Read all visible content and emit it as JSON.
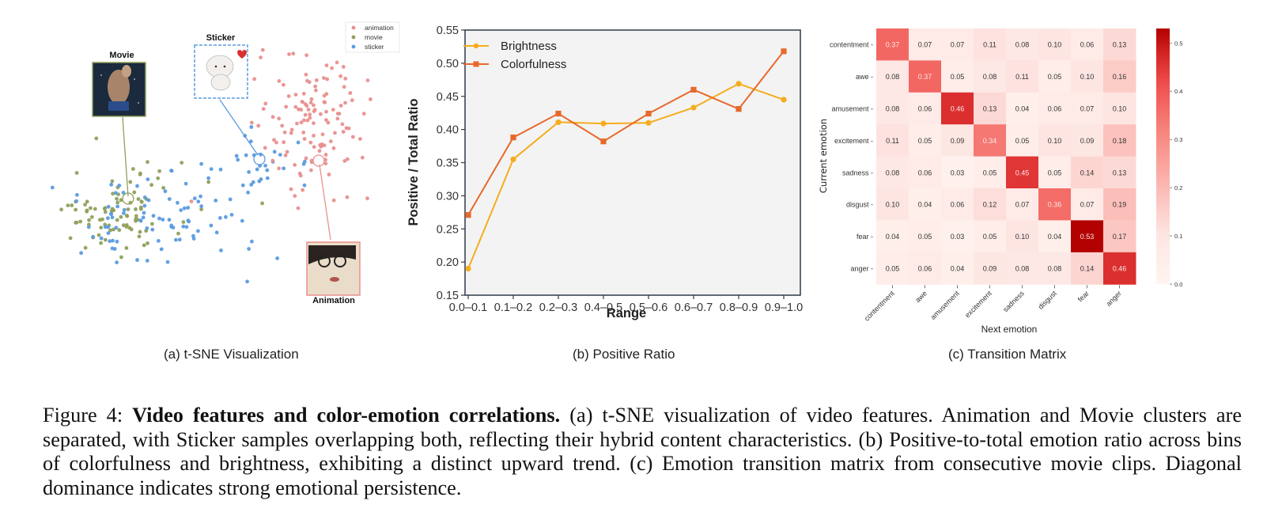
{
  "figure": {
    "subcaptions": {
      "a": "(a) t-SNE Visualization",
      "b": "(b) Positive Ratio",
      "c": "(c) Transition Matrix"
    },
    "caption": {
      "label": "Figure 4: ",
      "bold": "Video features and color-emotion correlations.",
      "text": " (a) t-SNE visualization of video features. Animation and Movie clusters are separated, with Sticker samples overlapping both, reflecting their hybrid content characteristics. (b) Positive-to-total emotion ratio across bins of colorfulness and brightness, exhibiting a distinct upward trend. (c) Emotion transition matrix from consecutive movie clips. Diagonal dominance indicates strong emotional persistence."
    }
  },
  "chart_data": [
    {
      "type": "scatter",
      "title": "t-SNE Visualization",
      "legend": [
        {
          "name": "animation",
          "color": "#e8908e"
        },
        {
          "name": "movie",
          "color": "#8fa05c"
        },
        {
          "name": "sticker",
          "color": "#5b9be0"
        }
      ],
      "legend_position": "top-right",
      "annotations": [
        {
          "label": "Movie",
          "series": "movie",
          "image": "movie-thumbnail",
          "border_color": "#8fa05c"
        },
        {
          "label": "Sticker",
          "series": "sticker",
          "image": "sticker-thumbnail",
          "border_color": "#5b9be0"
        },
        {
          "label": "Animation",
          "series": "animation",
          "image": "animation-thumbnail",
          "border_color": "#e8908e"
        }
      ],
      "clusters": [
        {
          "series": "movie",
          "center": [
            -0.62,
            -0.35
          ],
          "spread": [
            0.26,
            0.2
          ],
          "count": 95
        },
        {
          "series": "sticker",
          "center": [
            -0.38,
            -0.4
          ],
          "spread": [
            0.36,
            0.24
          ],
          "count": 90
        },
        {
          "series": "sticker",
          "center": [
            0.25,
            0.05
          ],
          "spread": [
            0.16,
            0.12
          ],
          "count": 30
        },
        {
          "series": "animation",
          "center": [
            0.55,
            0.35
          ],
          "spread": [
            0.2,
            0.3
          ],
          "count": 130
        }
      ]
    },
    {
      "type": "line",
      "title": "",
      "xlabel": "Range",
      "ylabel": "Positive / Total Ratio",
      "categories": [
        "0.0–0.1",
        "0.1–0.2",
        "0.2–0.3",
        "0.4–0.5",
        "0.5–0.6",
        "0.6–0.7",
        "0.8–0.9",
        "0.9–1.0"
      ],
      "ylim": [
        0.15,
        0.55
      ],
      "yticks": [
        0.15,
        0.2,
        0.25,
        0.3,
        0.35,
        0.4,
        0.45,
        0.5,
        0.55
      ],
      "grid": false,
      "legend_position": "top-left",
      "series": [
        {
          "name": "Brightness",
          "color": "#f5ac1e",
          "marker": "circle",
          "values": [
            0.19,
            0.355,
            0.411,
            0.409,
            0.41,
            0.433,
            0.469,
            0.445
          ]
        },
        {
          "name": "Colorfulness",
          "color": "#e8682b",
          "marker": "square",
          "values": [
            0.271,
            0.388,
            0.424,
            0.382,
            0.424,
            0.46,
            0.431,
            0.518
          ]
        }
      ]
    },
    {
      "type": "heatmap",
      "title": "",
      "xlabel": "Next emotion",
      "ylabel": "Current emotion",
      "x": [
        "contentment",
        "awe",
        "amusement",
        "excitement",
        "sadness",
        "disgust",
        "fear",
        "anger"
      ],
      "y": [
        "contentment",
        "awe",
        "amusement",
        "excitement",
        "sadness",
        "disgust",
        "fear",
        "anger"
      ],
      "values": [
        [
          0.37,
          0.07,
          0.07,
          0.11,
          0.08,
          0.1,
          0.06,
          0.13
        ],
        [
          0.08,
          0.37,
          0.05,
          0.08,
          0.11,
          0.05,
          0.1,
          0.16
        ],
        [
          0.08,
          0.06,
          0.46,
          0.13,
          0.04,
          0.06,
          0.07,
          0.1
        ],
        [
          0.11,
          0.05,
          0.09,
          0.34,
          0.05,
          0.1,
          0.09,
          0.18
        ],
        [
          0.08,
          0.06,
          0.03,
          0.05,
          0.45,
          0.05,
          0.14,
          0.13
        ],
        [
          0.1,
          0.04,
          0.06,
          0.12,
          0.07,
          0.36,
          0.07,
          0.19
        ],
        [
          0.04,
          0.05,
          0.03,
          0.05,
          0.1,
          0.04,
          0.53,
          0.17
        ],
        [
          0.05,
          0.06,
          0.04,
          0.09,
          0.08,
          0.08,
          0.14,
          0.46
        ]
      ],
      "colorbar": {
        "range": [
          0.0,
          0.53
        ],
        "ticks": [
          "0.0",
          "0.1",
          "0.2",
          "0.3",
          "0.4",
          "0.5"
        ],
        "colormap": "Reds"
      }
    }
  ]
}
